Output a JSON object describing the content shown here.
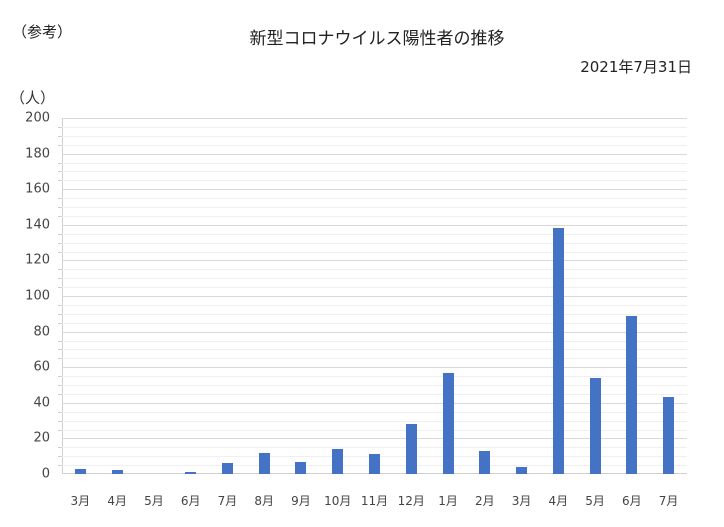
{
  "header": {
    "note": "（参考）",
    "title": "新型コロナウイルス陽性者の推移",
    "date": "2021年7月31日",
    "unit": "（人）"
  },
  "colors": {
    "bar": "#4472c4",
    "grid_major": "#d9d9d9",
    "grid_minor": "#efefef"
  },
  "chart_data": {
    "type": "bar",
    "title": "新型コロナウイルス陽性者の推移",
    "subtitle": "2021年7月31日",
    "annotation": "（参考）",
    "xlabel": "",
    "ylabel": "（人）",
    "ylim": [
      0,
      200
    ],
    "yticks": [
      0,
      20,
      40,
      60,
      80,
      100,
      120,
      140,
      160,
      180,
      200
    ],
    "grid": true,
    "legend": null,
    "categories": [
      "3月",
      "4月",
      "5月",
      "6月",
      "7月",
      "8月",
      "9月",
      "10月",
      "11月",
      "12月",
      "1月",
      "2月",
      "3月",
      "4月",
      "5月",
      "6月",
      "7月"
    ],
    "values": [
      3,
      2,
      0,
      1,
      6,
      12,
      7,
      14,
      11,
      28,
      57,
      13,
      4,
      138,
      54,
      89,
      43
    ]
  }
}
